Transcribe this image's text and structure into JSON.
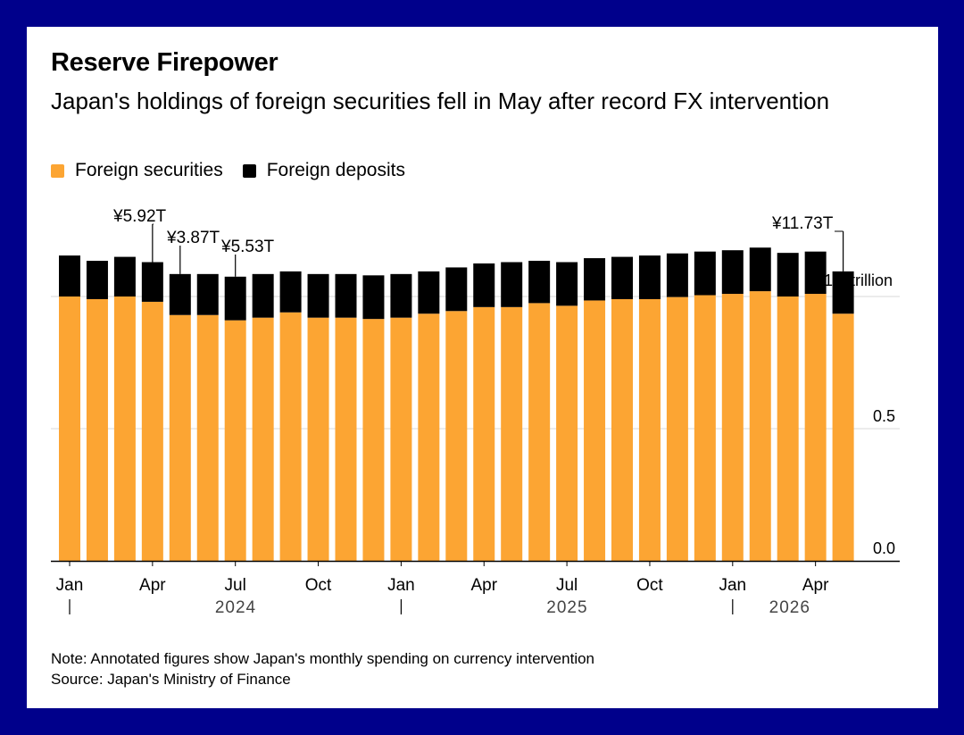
{
  "title": "Reserve Firepower",
  "subtitle": "Japan's holdings of foreign securities fell in May after record FX intervention",
  "note": "Note: Annotated figures show Japan's monthly spending on currency intervention",
  "source": "Source: Japan's Ministry of Finance",
  "colors": {
    "securities": "#fca533",
    "deposits": "#000000",
    "grid": "#d9d9d9",
    "frame": "#00008b"
  },
  "chart_data": {
    "type": "bar",
    "stacked": true,
    "categories": [
      "Jan 2024",
      "Feb 2024",
      "Mar 2024",
      "Apr 2024",
      "May 2024",
      "Jun 2024",
      "Jul 2024",
      "Aug 2024",
      "Sep 2024",
      "Oct 2024",
      "Nov 2024",
      "Dec 2024",
      "Jan 2025",
      "Feb 2025",
      "Mar 2025",
      "Apr 2025",
      "May 2025",
      "Jun 2025",
      "Jul 2025",
      "Aug 2025",
      "Sep 2025",
      "Oct 2025",
      "Nov 2025",
      "Dec 2025",
      "Jan 2026",
      "Feb 2026",
      "Mar 2026",
      "Apr 2026",
      "May 2026"
    ],
    "series": [
      {
        "name": "Foreign securities",
        "values": [
          1.0,
          0.99,
          1.0,
          0.98,
          0.93,
          0.93,
          0.91,
          0.92,
          0.94,
          0.92,
          0.92,
          0.915,
          0.92,
          0.935,
          0.945,
          0.96,
          0.96,
          0.975,
          0.965,
          0.985,
          0.99,
          0.99,
          0.998,
          1.005,
          1.01,
          1.02,
          1.0,
          1.01,
          0.935
        ]
      },
      {
        "name": "Foreign deposits",
        "values": [
          0.155,
          0.145,
          0.15,
          0.15,
          0.155,
          0.155,
          0.165,
          0.165,
          0.155,
          0.165,
          0.165,
          0.165,
          0.165,
          0.16,
          0.165,
          0.165,
          0.17,
          0.16,
          0.165,
          0.16,
          0.16,
          0.165,
          0.165,
          0.165,
          0.165,
          0.165,
          0.165,
          0.16,
          0.16
        ]
      }
    ],
    "annotations": [
      {
        "label": "¥5.92T",
        "category_index": 3
      },
      {
        "label": "¥3.87T",
        "category_index": 4
      },
      {
        "label": "¥5.53T",
        "category_index": 6
      },
      {
        "label": "¥11.73T",
        "category_index": 28
      }
    ],
    "y_unit_label": "1.0 trillion",
    "y_ticks": [
      0.0,
      0.5,
      1.0
    ],
    "y_tick_labels": [
      "0.0",
      "0.5"
    ],
    "ylim": [
      0,
      1.15
    ],
    "x_tick_labels": [
      {
        "label": "Jan",
        "category_index": 0
      },
      {
        "label": "Apr",
        "category_index": 3
      },
      {
        "label": "Jul",
        "category_index": 6
      },
      {
        "label": "Oct",
        "category_index": 9
      },
      {
        "label": "Jan",
        "category_index": 12
      },
      {
        "label": "Apr",
        "category_index": 15
      },
      {
        "label": "Jul",
        "category_index": 18
      },
      {
        "label": "Oct",
        "category_index": 21
      },
      {
        "label": "Jan",
        "category_index": 24
      },
      {
        "label": "Apr",
        "category_index": 27
      }
    ],
    "x_year_labels": [
      {
        "label": "2024",
        "category_index": 0
      },
      {
        "label": "2025",
        "category_index": 12
      },
      {
        "label": "2026",
        "category_index": 24
      }
    ],
    "legend": "top-left",
    "grid": true
  }
}
